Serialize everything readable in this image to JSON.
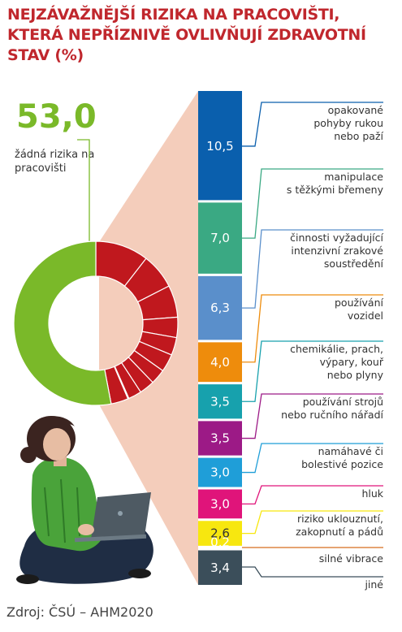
{
  "title": "NEJZÁVAŽNĚJŠÍ RIZIKA NA PRACOVIŠTI, KTERÁ NEPŘÍZNIVĚ OVLIVŇUJÍ ZDRAVOTNÍ STAV (%)",
  "source": "Zdroj: ČSÚ – AHM2020",
  "no_risk": {
    "value_label": "53,0",
    "label": "žádná rizika na pracovišti",
    "value": 53.0,
    "color": "#7ab929"
  },
  "risk_color": "#c0181e",
  "chart_data": {
    "type": "bar",
    "title": "NEJZÁVAŽNĚJŠÍ RIZIKA NA PRACOVIŠTI, KTERÁ NEPŘÍZNIVĚ OVLIVŇUJÍ ZDRAVOTNÍ STAV (%)",
    "unit": "%",
    "donut": [
      {
        "name": "žádná rizika na pracovišti",
        "value": 53.0
      },
      {
        "name": "rizika",
        "value": 47.0
      }
    ],
    "categories": [
      "opakované pohyby rukou nebo paží",
      "manipulace s těžkými břemeny",
      "činnosti vyžadující intenzivní zrakové soustředění",
      "používání vozidel",
      "chemikálie, prach, výpary, kouř nebo plyny",
      "používání strojů nebo ručního nářadí",
      "namáhavé či bolestivé pozice",
      "hluk",
      "riziko uklouznutí, zakopnutí a pádů",
      "silné vibrace",
      "jiné"
    ],
    "values": [
      10.5,
      7.0,
      6.3,
      4.0,
      3.5,
      3.5,
      3.0,
      3.0,
      2.6,
      0.2,
      3.4
    ],
    "value_labels": [
      "10,5",
      "7,0",
      "6,3",
      "4,0",
      "3,5",
      "3,5",
      "3,0",
      "3,0",
      "2,6",
      "0,2",
      "3,4"
    ],
    "label_lines": [
      [
        "opakované",
        "pohyby rukou",
        "nebo paží"
      ],
      [
        "manipulace",
        "s těžkými břemeny"
      ],
      [
        "činnosti vyžadující",
        "intenzivní zrakové",
        "soustředění"
      ],
      [
        "používání",
        "vozidel"
      ],
      [
        "chemikálie, prach,",
        "výpary, kouř",
        "nebo plyny"
      ],
      [
        "používání strojů",
        "nebo ručního nářadí"
      ],
      [
        "namáhavé či",
        "bolestivé pozice"
      ],
      [
        "hluk"
      ],
      [
        "riziko uklouznutí,",
        "zakopnutí a pádů"
      ],
      [
        "silné vibrace"
      ],
      [
        "jiné"
      ]
    ],
    "colors": [
      "#0a5fad",
      "#3aa983",
      "#5a8fcb",
      "#ee8c0c",
      "#17a1ad",
      "#9c1a86",
      "#1f9ed8",
      "#e0147a",
      "#f7e70f",
      "#d66e1e",
      "#3b4e5a"
    ]
  }
}
